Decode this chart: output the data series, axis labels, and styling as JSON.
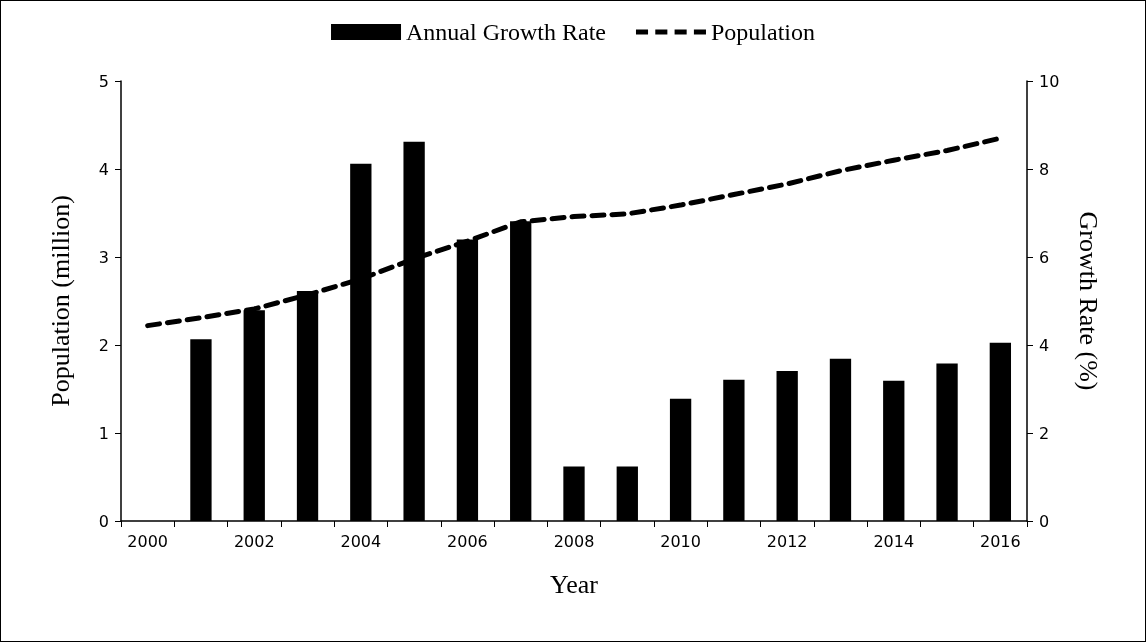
{
  "chart_data": {
    "type": "bar",
    "xlabel": "Year",
    "ylabel": "Population (million)",
    "y2label": "Growth Rate (%)",
    "categories": [
      "2000",
      null,
      "2002",
      null,
      "2004",
      null,
      "2006",
      null,
      "2008",
      null,
      "2010",
      null,
      "2012",
      null,
      "2014",
      null,
      "2016"
    ],
    "series": [
      {
        "name": "Annual Growth Rate",
        "axis": "y2",
        "color": "#000000",
        "values": [
          null,
          4.13,
          4.79,
          5.23,
          8.12,
          8.62,
          6.4,
          6.81,
          1.24,
          1.24,
          2.78,
          3.21,
          3.41,
          3.69,
          3.19,
          3.58,
          4.05
        ]
      },
      {
        "name": "Population",
        "type": "line",
        "line_style": "dashed",
        "marker": "none",
        "color": "#000000",
        "values": [
          2.22,
          2.31,
          2.41,
          2.57,
          2.75,
          2.98,
          3.18,
          3.4,
          3.46,
          3.49,
          3.59,
          3.71,
          3.83,
          3.98,
          4.1,
          4.21,
          4.35
        ]
      }
    ],
    "ylim": [
      0,
      5
    ],
    "yticks": [
      0,
      1,
      2,
      3,
      4,
      5
    ],
    "y2lim": [
      0,
      10
    ],
    "y2ticks": [
      0,
      2,
      4,
      6,
      8,
      10
    ],
    "grid": false,
    "legend": "top"
  }
}
